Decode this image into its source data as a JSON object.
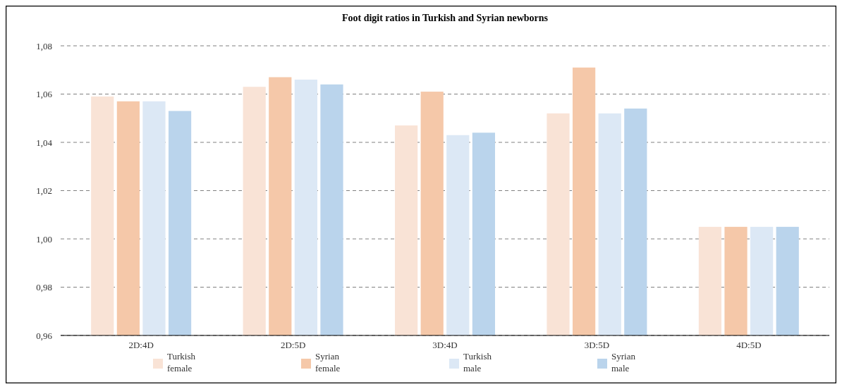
{
  "chart_data": {
    "type": "bar",
    "title": "Foot digit ratios in Turkish and Syrian newborns",
    "categories": [
      "2D:4D",
      "2D:5D",
      "3D:4D",
      "3D:5D",
      "4D:5D"
    ],
    "series": [
      {
        "name": "Turkish female",
        "color": "#f9e3d6",
        "values": [
          1.059,
          1.063,
          1.047,
          1.052,
          1.005
        ]
      },
      {
        "name": "Syrian female",
        "color": "#f5c8a9",
        "values": [
          1.057,
          1.067,
          1.061,
          1.071,
          1.005
        ]
      },
      {
        "name": "Turkish male",
        "color": "#dce8f5",
        "values": [
          1.057,
          1.066,
          1.043,
          1.052,
          1.005
        ]
      },
      {
        "name": "Syrian male",
        "color": "#bad4ec",
        "values": [
          1.053,
          1.064,
          1.044,
          1.054,
          1.005
        ]
      }
    ],
    "ylim": [
      0.96,
      1.08
    ],
    "yticks": [
      {
        "value": 0.96,
        "label": "0,96"
      },
      {
        "value": 0.98,
        "label": "0,98"
      },
      {
        "value": 1.0,
        "label": "1,00"
      },
      {
        "value": 1.02,
        "label": "1,02"
      },
      {
        "value": 1.04,
        "label": "1,04"
      },
      {
        "value": 1.06,
        "label": "1,06"
      },
      {
        "value": 1.08,
        "label": "1,08"
      }
    ],
    "grid": "y",
    "legend": "bottom"
  }
}
